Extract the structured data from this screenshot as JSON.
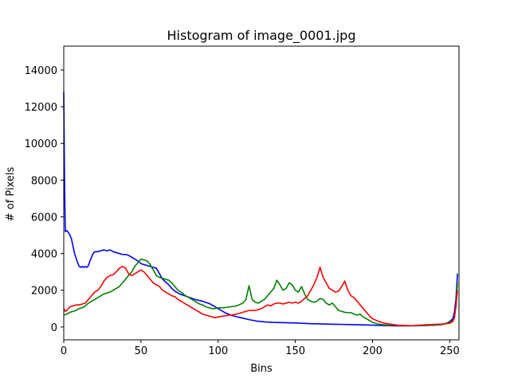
{
  "chart_data": {
    "type": "line",
    "title": "Histogram of image_0001.jpg",
    "xlabel": "Bins",
    "ylabel": "# of Pixels",
    "xlim": [
      0,
      256
    ],
    "ylim": [
      -700,
      15300
    ],
    "xticks": [
      0,
      50,
      100,
      150,
      200,
      250
    ],
    "yticks": [
      0,
      2000,
      4000,
      6000,
      8000,
      10000,
      12000,
      14000
    ],
    "grid": false,
    "legend": "none",
    "series": [
      {
        "color": "#0000ff",
        "points": [
          [
            0,
            12800
          ],
          [
            0.5,
            8000
          ],
          [
            1,
            5200
          ],
          [
            2,
            5250
          ],
          [
            3,
            5150
          ],
          [
            4,
            5000
          ],
          [
            5,
            4800
          ],
          [
            6,
            4400
          ],
          [
            7,
            4000
          ],
          [
            8,
            3750
          ],
          [
            9,
            3500
          ],
          [
            10,
            3300
          ],
          [
            11,
            3250
          ],
          [
            12,
            3300
          ],
          [
            13,
            3250
          ],
          [
            14,
            3300
          ],
          [
            15,
            3250
          ],
          [
            16,
            3350
          ],
          [
            17,
            3600
          ],
          [
            18,
            3800
          ],
          [
            19,
            4000
          ],
          [
            20,
            4100
          ],
          [
            22,
            4100
          ],
          [
            24,
            4150
          ],
          [
            26,
            4200
          ],
          [
            28,
            4150
          ],
          [
            30,
            4200
          ],
          [
            32,
            4100
          ],
          [
            34,
            4050
          ],
          [
            36,
            4000
          ],
          [
            38,
            3950
          ],
          [
            40,
            3950
          ],
          [
            42,
            3900
          ],
          [
            44,
            3800
          ],
          [
            46,
            3700
          ],
          [
            48,
            3600
          ],
          [
            50,
            3450
          ],
          [
            52,
            3400
          ],
          [
            54,
            3350
          ],
          [
            56,
            3300
          ],
          [
            58,
            3250
          ],
          [
            60,
            3200
          ],
          [
            62,
            2900
          ],
          [
            64,
            2600
          ],
          [
            66,
            2450
          ],
          [
            68,
            2300
          ],
          [
            70,
            2100
          ],
          [
            72,
            1950
          ],
          [
            75,
            1800
          ],
          [
            80,
            1650
          ],
          [
            85,
            1500
          ],
          [
            90,
            1400
          ],
          [
            95,
            1250
          ],
          [
            100,
            1000
          ],
          [
            105,
            750
          ],
          [
            110,
            600
          ],
          [
            115,
            500
          ],
          [
            120,
            400
          ],
          [
            125,
            320
          ],
          [
            130,
            280
          ],
          [
            135,
            250
          ],
          [
            140,
            240
          ],
          [
            145,
            230
          ],
          [
            150,
            220
          ],
          [
            155,
            200
          ],
          [
            160,
            180
          ],
          [
            165,
            170
          ],
          [
            170,
            160
          ],
          [
            175,
            150
          ],
          [
            180,
            140
          ],
          [
            185,
            130
          ],
          [
            190,
            120
          ],
          [
            195,
            110
          ],
          [
            200,
            100
          ],
          [
            205,
            80
          ],
          [
            210,
            70
          ],
          [
            215,
            60
          ],
          [
            220,
            60
          ],
          [
            225,
            60
          ],
          [
            230,
            70
          ],
          [
            235,
            80
          ],
          [
            240,
            100
          ],
          [
            245,
            130
          ],
          [
            248,
            200
          ],
          [
            250,
            300
          ],
          [
            252,
            450
          ],
          [
            253,
            800
          ],
          [
            254,
            1500
          ],
          [
            255,
            2900
          ]
        ]
      },
      {
        "color": "#008000",
        "points": [
          [
            0,
            650
          ],
          [
            2,
            700
          ],
          [
            4,
            800
          ],
          [
            6,
            850
          ],
          [
            8,
            900
          ],
          [
            10,
            1000
          ],
          [
            12,
            1050
          ],
          [
            14,
            1150
          ],
          [
            16,
            1300
          ],
          [
            18,
            1400
          ],
          [
            20,
            1500
          ],
          [
            22,
            1600
          ],
          [
            24,
            1700
          ],
          [
            26,
            1800
          ],
          [
            28,
            1850
          ],
          [
            30,
            1900
          ],
          [
            32,
            2000
          ],
          [
            34,
            2100
          ],
          [
            36,
            2200
          ],
          [
            38,
            2400
          ],
          [
            40,
            2600
          ],
          [
            42,
            2800
          ],
          [
            44,
            3000
          ],
          [
            46,
            3300
          ],
          [
            48,
            3500
          ],
          [
            50,
            3700
          ],
          [
            52,
            3650
          ],
          [
            54,
            3600
          ],
          [
            56,
            3400
          ],
          [
            58,
            3100
          ],
          [
            60,
            2800
          ],
          [
            62,
            2700
          ],
          [
            64,
            2650
          ],
          [
            66,
            2600
          ],
          [
            68,
            2550
          ],
          [
            70,
            2400
          ],
          [
            72,
            2200
          ],
          [
            74,
            2000
          ],
          [
            76,
            1900
          ],
          [
            78,
            1750
          ],
          [
            80,
            1650
          ],
          [
            82,
            1550
          ],
          [
            84,
            1450
          ],
          [
            86,
            1350
          ],
          [
            88,
            1250
          ],
          [
            90,
            1200
          ],
          [
            92,
            1100
          ],
          [
            94,
            1050
          ],
          [
            96,
            1000
          ],
          [
            98,
            1000
          ],
          [
            100,
            1050
          ],
          [
            104,
            1050
          ],
          [
            108,
            1100
          ],
          [
            112,
            1150
          ],
          [
            116,
            1300
          ],
          [
            118,
            1500
          ],
          [
            120,
            2250
          ],
          [
            122,
            1500
          ],
          [
            124,
            1350
          ],
          [
            126,
            1300
          ],
          [
            128,
            1400
          ],
          [
            130,
            1500
          ],
          [
            132,
            1700
          ],
          [
            134,
            1900
          ],
          [
            136,
            2100
          ],
          [
            138,
            2550
          ],
          [
            140,
            2300
          ],
          [
            142,
            2000
          ],
          [
            144,
            2100
          ],
          [
            146,
            2400
          ],
          [
            148,
            2300
          ],
          [
            150,
            2000
          ],
          [
            152,
            1900
          ],
          [
            154,
            2200
          ],
          [
            156,
            1800
          ],
          [
            158,
            1500
          ],
          [
            160,
            1400
          ],
          [
            162,
            1350
          ],
          [
            164,
            1400
          ],
          [
            166,
            1550
          ],
          [
            168,
            1500
          ],
          [
            170,
            1300
          ],
          [
            172,
            1200
          ],
          [
            174,
            1300
          ],
          [
            176,
            1100
          ],
          [
            178,
            900
          ],
          [
            180,
            850
          ],
          [
            182,
            800
          ],
          [
            184,
            780
          ],
          [
            186,
            780
          ],
          [
            188,
            700
          ],
          [
            190,
            650
          ],
          [
            192,
            700
          ],
          [
            194,
            550
          ],
          [
            196,
            450
          ],
          [
            198,
            350
          ],
          [
            200,
            250
          ],
          [
            204,
            150
          ],
          [
            210,
            100
          ],
          [
            215,
            100
          ],
          [
            220,
            80
          ],
          [
            225,
            70
          ],
          [
            230,
            80
          ],
          [
            235,
            90
          ],
          [
            240,
            100
          ],
          [
            245,
            150
          ],
          [
            250,
            250
          ],
          [
            252,
            350
          ],
          [
            253,
            500
          ],
          [
            254,
            1200
          ],
          [
            255,
            2400
          ]
        ]
      },
      {
        "color": "#ff0000",
        "points": [
          [
            0,
            1000
          ],
          [
            1,
            850
          ],
          [
            2,
            900
          ],
          [
            4,
            1100
          ],
          [
            6,
            1150
          ],
          [
            8,
            1200
          ],
          [
            10,
            1200
          ],
          [
            12,
            1250
          ],
          [
            14,
            1300
          ],
          [
            16,
            1500
          ],
          [
            18,
            1700
          ],
          [
            20,
            1900
          ],
          [
            22,
            2000
          ],
          [
            24,
            2200
          ],
          [
            26,
            2500
          ],
          [
            28,
            2700
          ],
          [
            30,
            2800
          ],
          [
            32,
            2850
          ],
          [
            34,
            3000
          ],
          [
            36,
            3200
          ],
          [
            38,
            3300
          ],
          [
            40,
            3200
          ],
          [
            42,
            2900
          ],
          [
            44,
            2800
          ],
          [
            46,
            2900
          ],
          [
            48,
            3000
          ],
          [
            50,
            3100
          ],
          [
            52,
            3000
          ],
          [
            54,
            2800
          ],
          [
            56,
            2600
          ],
          [
            58,
            2400
          ],
          [
            60,
            2300
          ],
          [
            62,
            2200
          ],
          [
            64,
            2000
          ],
          [
            66,
            1900
          ],
          [
            68,
            1800
          ],
          [
            70,
            1700
          ],
          [
            72,
            1650
          ],
          [
            74,
            1500
          ],
          [
            76,
            1400
          ],
          [
            78,
            1300
          ],
          [
            80,
            1200
          ],
          [
            82,
            1100
          ],
          [
            84,
            1000
          ],
          [
            86,
            900
          ],
          [
            88,
            800
          ],
          [
            90,
            700
          ],
          [
            92,
            650
          ],
          [
            94,
            600
          ],
          [
            96,
            550
          ],
          [
            98,
            500
          ],
          [
            100,
            550
          ],
          [
            104,
            600
          ],
          [
            108,
            650
          ],
          [
            112,
            700
          ],
          [
            116,
            800
          ],
          [
            120,
            900
          ],
          [
            124,
            900
          ],
          [
            126,
            950
          ],
          [
            128,
            1000
          ],
          [
            130,
            1100
          ],
          [
            132,
            1200
          ],
          [
            134,
            1150
          ],
          [
            136,
            1250
          ],
          [
            138,
            1300
          ],
          [
            140,
            1300
          ],
          [
            142,
            1250
          ],
          [
            144,
            1300
          ],
          [
            146,
            1350
          ],
          [
            148,
            1300
          ],
          [
            150,
            1350
          ],
          [
            152,
            1300
          ],
          [
            154,
            1400
          ],
          [
            156,
            1550
          ],
          [
            158,
            1700
          ],
          [
            160,
            2000
          ],
          [
            162,
            2300
          ],
          [
            164,
            2700
          ],
          [
            166,
            3250
          ],
          [
            168,
            2700
          ],
          [
            170,
            2400
          ],
          [
            172,
            2100
          ],
          [
            174,
            2000
          ],
          [
            176,
            1900
          ],
          [
            178,
            1950
          ],
          [
            180,
            2200
          ],
          [
            182,
            2500
          ],
          [
            184,
            2000
          ],
          [
            186,
            1700
          ],
          [
            188,
            1600
          ],
          [
            190,
            1400
          ],
          [
            192,
            1200
          ],
          [
            194,
            1000
          ],
          [
            196,
            800
          ],
          [
            198,
            600
          ],
          [
            200,
            450
          ],
          [
            204,
            300
          ],
          [
            208,
            200
          ],
          [
            212,
            150
          ],
          [
            216,
            100
          ],
          [
            220,
            80
          ],
          [
            225,
            70
          ],
          [
            230,
            90
          ],
          [
            235,
            120
          ],
          [
            240,
            140
          ],
          [
            245,
            160
          ],
          [
            250,
            200
          ],
          [
            252,
            300
          ],
          [
            253,
            500
          ],
          [
            254,
            1100
          ],
          [
            255,
            2000
          ]
        ]
      }
    ]
  }
}
